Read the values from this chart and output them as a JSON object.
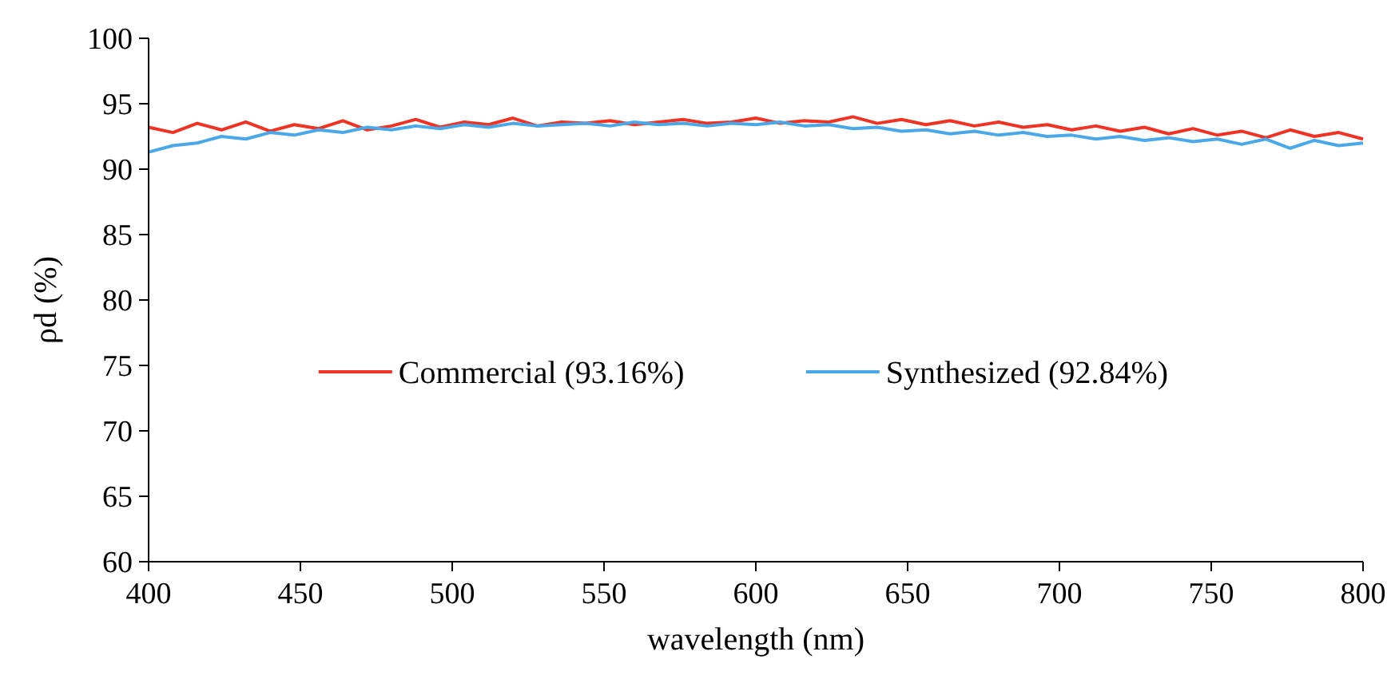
{
  "chart_data": {
    "type": "line",
    "xlabel": "wavelength (nm)",
    "ylabel": "ρd (%)",
    "x": [
      400,
      408,
      416,
      424,
      432,
      440,
      448,
      456,
      464,
      472,
      480,
      488,
      496,
      504,
      512,
      520,
      528,
      536,
      544,
      552,
      560,
      568,
      576,
      584,
      592,
      600,
      608,
      616,
      624,
      632,
      640,
      648,
      656,
      664,
      672,
      680,
      688,
      696,
      704,
      712,
      720,
      728,
      736,
      744,
      752,
      760,
      768,
      776,
      784,
      792,
      800
    ],
    "series": [
      {
        "name": "Commercial (93.16%)",
        "color": "#ee3224",
        "values": [
          93.2,
          92.8,
          93.5,
          93.0,
          93.6,
          92.9,
          93.4,
          93.1,
          93.7,
          93.0,
          93.3,
          93.8,
          93.2,
          93.6,
          93.4,
          93.9,
          93.3,
          93.6,
          93.5,
          93.7,
          93.4,
          93.6,
          93.8,
          93.5,
          93.6,
          93.9,
          93.5,
          93.7,
          93.6,
          94.0,
          93.5,
          93.8,
          93.4,
          93.7,
          93.3,
          93.6,
          93.2,
          93.4,
          93.0,
          93.3,
          92.9,
          93.2,
          92.7,
          93.1,
          92.6,
          92.9,
          92.4,
          93.0,
          92.5,
          92.8,
          92.3
        ]
      },
      {
        "name": "Synthesized (92.84%)",
        "color": "#4aa8e8",
        "values": [
          91.3,
          91.8,
          92.0,
          92.5,
          92.3,
          92.8,
          92.6,
          93.0,
          92.8,
          93.2,
          93.0,
          93.3,
          93.1,
          93.4,
          93.2,
          93.5,
          93.3,
          93.4,
          93.5,
          93.3,
          93.6,
          93.4,
          93.5,
          93.3,
          93.5,
          93.4,
          93.6,
          93.3,
          93.4,
          93.1,
          93.2,
          92.9,
          93.0,
          92.7,
          92.9,
          92.6,
          92.8,
          92.5,
          92.6,
          92.3,
          92.5,
          92.2,
          92.4,
          92.1,
          92.3,
          91.9,
          92.3,
          91.6,
          92.2,
          91.8,
          92.0
        ]
      }
    ],
    "xlim": [
      400,
      800
    ],
    "xticks": [
      400,
      450,
      500,
      550,
      600,
      650,
      700,
      750,
      800
    ],
    "ylim": [
      60,
      100
    ],
    "yticks": [
      60,
      65,
      70,
      75,
      80,
      85,
      90,
      95,
      100
    ],
    "legend": "center",
    "grid": false,
    "line_style": "solid"
  }
}
